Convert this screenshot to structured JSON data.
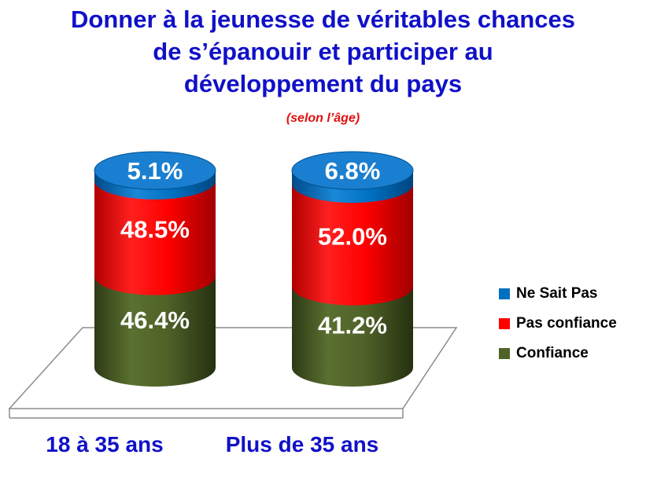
{
  "header": {
    "title_lines": [
      "Donner à la jeunesse de véritables chances",
      "de s’épanouir et participer au",
      "développement du pays"
    ],
    "subtitle": "(selon l’âge)"
  },
  "chart_data": {
    "type": "bar",
    "stacked": true,
    "style": "3d-cylinder",
    "title": "Donner à la jeunesse de véritables chances de s’épanouir et participer au développement du pays",
    "subtitle": "(selon l’âge)",
    "categories": [
      "18 à 35 ans",
      "Plus de 35 ans"
    ],
    "series": [
      {
        "name": "Confiance",
        "values": [
          46.4,
          41.2
        ],
        "labels": [
          "46.4%",
          "41.2%"
        ],
        "color": "#4f6228"
      },
      {
        "name": "Pas confiance",
        "values": [
          48.5,
          52.0
        ],
        "labels": [
          "48.5%",
          "52.0%"
        ],
        "color": "#ff0000"
      },
      {
        "name": "Ne Sait Pas",
        "values": [
          5.1,
          6.8
        ],
        "labels": [
          "5.1%",
          "6.8%"
        ],
        "color": "#0070c0"
      }
    ],
    "legend": "right",
    "grid": false,
    "ylim": [
      0,
      100
    ]
  },
  "legend": {
    "items": [
      {
        "label": "Ne Sait Pas",
        "color": "#0070c0"
      },
      {
        "label": "Pas confiance",
        "color": "#ff0000"
      },
      {
        "label": "Confiance",
        "color": "#4f6228"
      }
    ]
  }
}
